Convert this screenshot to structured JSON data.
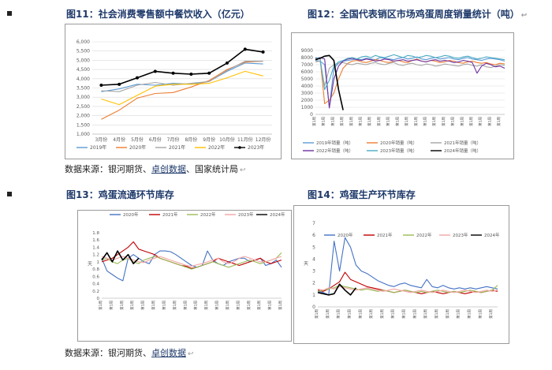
{
  "sections": [
    {
      "left": {
        "title": "图11：社会消费零售额中餐饮收入（亿元）"
      },
      "right": {
        "title": "图12：全国代表销区市场鸡蛋周度销量统计（吨）",
        "return_mark": "↩"
      },
      "source": {
        "label": "数据来源：",
        "items": [
          "银河期货",
          "卓创数据",
          "国家统计局"
        ],
        "separator": "、",
        "return_mark": "↩"
      }
    },
    {
      "left": {
        "title": "图13：鸡蛋流通环节库存"
      },
      "right": {
        "title": "图14：鸡蛋生产环节库存"
      },
      "source": {
        "label": "数据来源：",
        "items": [
          "银河期货",
          "卓创数据"
        ],
        "separator": "、",
        "return_mark": "↩"
      }
    }
  ],
  "chart_data": [
    {
      "type": "line",
      "title": "社会消费零售额中餐饮收入（亿元）",
      "categories": [
        "3月份",
        "4月份",
        "5月份",
        "6月份",
        "7月份",
        "8月份",
        "9月份",
        "10月份",
        "11月份",
        "12月份"
      ],
      "ylim": [
        1000,
        6000
      ],
      "yticks": [
        "1,000",
        "1,500",
        "2,000",
        "2,500",
        "3,000",
        "3,500",
        "4,000",
        "4,500",
        "5,000",
        "5,500",
        "6,000"
      ],
      "series": [
        {
          "name": "2019年",
          "color": "#5b9bd5",
          "values": [
            3300,
            3450,
            3700,
            3650,
            3750,
            3700,
            3850,
            4400,
            4850,
            4800
          ]
        },
        {
          "name": "2020年",
          "color": "#ed7d31",
          "values": [
            1800,
            2300,
            2950,
            3200,
            3250,
            3550,
            3900,
            4500,
            4900,
            4950
          ]
        },
        {
          "name": "2021年",
          "color": "#a5a5a5",
          "values": [
            3350,
            3300,
            3650,
            3800,
            3650,
            3750,
            3850,
            4450,
            4950,
            4950
          ]
        },
        {
          "name": "2022年",
          "color": "#ffc000",
          "values": [
            2900,
            2600,
            3100,
            3600,
            3700,
            3700,
            3750,
            4050,
            4400,
            4150
          ]
        },
        {
          "name": "2023年",
          "color": "#000000",
          "values": [
            3650,
            3700,
            4050,
            4400,
            4300,
            4250,
            4300,
            4850,
            5600,
            5450
          ]
        }
      ]
    },
    {
      "type": "line",
      "title": "全国代表销区市场鸡蛋周度销量统计（吨）",
      "ylim": [
        0,
        9000
      ],
      "yticks": [
        "0",
        "1000",
        "2000",
        "3000",
        "4000",
        "5000",
        "6000",
        "7000",
        "8000",
        "9000"
      ],
      "x_label_text": "第1周",
      "series": [
        {
          "name": "2019年销量（吨）",
          "color": "#5b9bd5",
          "values": [
            7600,
            7500,
            7000,
            1000,
            6500,
            7200,
            7500,
            7600,
            7700,
            7800,
            7700,
            7900,
            7800,
            7700,
            8000,
            7900,
            7800,
            7700,
            7900,
            8000,
            7800,
            7900,
            8100,
            7800,
            7700,
            7900,
            8000,
            7800,
            7900,
            8000,
            7800,
            7700,
            7900,
            8000,
            7800,
            7700,
            7600,
            7800,
            7900,
            7800,
            7700,
            7500
          ]
        },
        {
          "name": "2020年销量（吨）",
          "color": "#ed7d31",
          "values": [
            7700,
            7900,
            1500,
            2000,
            3000,
            5000,
            6500,
            7200,
            7500,
            7600,
            7400,
            7300,
            7500,
            7700,
            7600,
            7400,
            7300,
            7500,
            7600,
            7400,
            7300,
            7600,
            7800,
            7500,
            7400,
            7600,
            7500,
            7300,
            7400,
            7600,
            7500,
            7300,
            7200,
            7400,
            7500,
            7300,
            7200,
            7300,
            7100,
            7000,
            7200,
            7100
          ]
        },
        {
          "name": "2021年销量（吨）",
          "color": "#a5a5a5",
          "values": [
            7400,
            7500,
            4000,
            6500,
            7000,
            7200,
            7300,
            7100,
            7000,
            7200,
            7100,
            7000,
            7200,
            7300,
            7100,
            7000,
            7200,
            7300,
            7000,
            6900,
            7100,
            7200,
            7000,
            6900,
            7100,
            7000,
            6800,
            6900,
            7100,
            7000,
            6900,
            6800,
            7000,
            7100,
            6900,
            6800,
            7000,
            6700,
            6600,
            6800,
            7000,
            6900
          ]
        },
        {
          "name": "2022年销量（吨）",
          "color": "#7030a0",
          "values": [
            7900,
            8000,
            7800,
            900,
            5000,
            6800,
            7500,
            7800,
            7900,
            7700,
            7600,
            7800,
            7700,
            7500,
            7600,
            7800,
            7700,
            7500,
            7600,
            7700,
            7500,
            7600,
            7700,
            7500,
            7400,
            7600,
            7700,
            7500,
            7600,
            7500,
            7300,
            7400,
            7600,
            7500,
            7300,
            5800,
            6800,
            7200,
            7000,
            6700,
            6800,
            6500
          ]
        },
        {
          "name": "2023年销量（吨）",
          "color": "#4bacc6",
          "values": [
            8000,
            7900,
            3500,
            4800,
            6800,
            7400,
            7600,
            7900,
            8000,
            7800,
            8100,
            8200,
            8000,
            8300,
            8100,
            8000,
            8200,
            8400,
            8200,
            8000,
            8300,
            8200,
            8000,
            8100,
            8300,
            8200,
            8000,
            8100,
            8300,
            8200,
            8000,
            7900,
            8100,
            8200,
            8000,
            7800,
            7900,
            8100,
            8000,
            7900,
            7800,
            7700
          ]
        },
        {
          "name": "2024年销量（吨）",
          "color": "#000000",
          "values": [
            7700,
            7900,
            8200,
            8300,
            7600,
            3500,
            600,
            null,
            null,
            null,
            null,
            null,
            null,
            null,
            null,
            null,
            null,
            null,
            null,
            null,
            null,
            null,
            null,
            null,
            null,
            null,
            null,
            null,
            null,
            null,
            null,
            null,
            null,
            null,
            null,
            null,
            null,
            null,
            null,
            null,
            null,
            null
          ]
        }
      ]
    },
    {
      "type": "line",
      "title": "鸡蛋流通环节库存",
      "ylabel": "天",
      "ylim": [
        0,
        1.8
      ],
      "yticks": [
        "0",
        "0.2",
        "0.4",
        "0.6",
        "0.8",
        "1",
        "1.2",
        "1.4",
        "1.6",
        "1.8"
      ],
      "x_label_text": "第1周",
      "series": [
        {
          "name": "2020年",
          "color": "#4472c4",
          "values": [
            1.1,
            0.75,
            0.65,
            0.55,
            0.48,
            1.1,
            1.2,
            1.1,
            1.0,
            0.95,
            1.2,
            1.3,
            1.3,
            1.28,
            1.2,
            1.1,
            1.0,
            0.9,
            0.85,
            0.9,
            1.3,
            1.05,
            0.95,
            0.9,
            1.0,
            1.05,
            1.1,
            1.1,
            1.0,
            1.05,
            1.1,
            0.9,
            0.95,
            1.05,
            0.85
          ]
        },
        {
          "name": "2021年",
          "color": "#c00000",
          "values": [
            1.0,
            1.05,
            1.1,
            1.2,
            1.3,
            1.4,
            1.55,
            1.35,
            1.3,
            1.25,
            1.2,
            1.1,
            1.05,
            1.0,
            0.95,
            0.9,
            0.88,
            0.82,
            0.85,
            0.9,
            0.95,
            1.0,
            1.1,
            1.05,
            1.0,
            0.95,
            0.9,
            0.95,
            1.0,
            1.05,
            1.1,
            1.0,
            0.95,
            1.0,
            1.05
          ]
        },
        {
          "name": "2022年",
          "color": "#9bbb59",
          "values": [
            1.05,
            1.1,
            1.0,
            0.95,
            1.05,
            1.1,
            1.0,
            0.95,
            1.05,
            1.1,
            1.15,
            1.1,
            1.05,
            1.0,
            0.95,
            0.9,
            0.85,
            0.8,
            0.85,
            0.9,
            0.95,
            1.0,
            0.95,
            0.9,
            0.85,
            0.9,
            0.95,
            1.0,
            1.05,
            1.0,
            0.95,
            1.0,
            1.05,
            1.1,
            1.25
          ]
        },
        {
          "name": "2023年",
          "color": "#f4a6a6",
          "values": [
            1.15,
            1.1,
            1.05,
            1.1,
            1.15,
            1.1,
            1.05,
            1.0,
            0.98,
            1.05,
            1.1,
            1.15,
            1.1,
            1.05,
            1.0,
            0.95,
            0.9,
            0.88,
            0.92,
            0.95,
            1.0,
            1.05,
            1.1,
            1.0,
            0.95,
            1.0,
            1.1,
            1.15,
            1.1,
            1.05,
            1.0,
            1.0,
            1.05,
            1.1,
            1.15
          ]
        },
        {
          "name": "2024年",
          "color": "#000000",
          "values": [
            1.05,
            1.25,
            1.0,
            1.3,
            1.05,
            1.2,
            0.95,
            1.1,
            null,
            null,
            null,
            null,
            null,
            null,
            null,
            null,
            null,
            null,
            null,
            null,
            null,
            null,
            null,
            null,
            null,
            null,
            null,
            null,
            null,
            null,
            null,
            null,
            null,
            null,
            null
          ]
        }
      ]
    },
    {
      "type": "line",
      "title": "鸡蛋生产环节库存",
      "ylabel": "天",
      "ylim": [
        0,
        7
      ],
      "yticks": [
        "0",
        "1",
        "2",
        "3",
        "4",
        "5",
        "6",
        "7"
      ],
      "x_label_text": "第1周",
      "series": [
        {
          "name": "2020年",
          "color": "#4472c4",
          "values": [
            1.3,
            1.2,
            1.0,
            5.5,
            3.0,
            5.8,
            5.0,
            3.5,
            3.0,
            2.8,
            2.5,
            2.2,
            2.0,
            1.8,
            1.7,
            1.9,
            2.0,
            1.8,
            1.7,
            1.6,
            2.3,
            1.7,
            1.6,
            1.8,
            1.6,
            1.5,
            1.6,
            1.5,
            1.6,
            1.5,
            1.6,
            1.7,
            1.6,
            1.5
          ]
        },
        {
          "name": "2021年",
          "color": "#c00000",
          "values": [
            1.4,
            1.3,
            1.5,
            1.8,
            2.1,
            2.9,
            2.3,
            2.1,
            1.9,
            1.7,
            1.6,
            1.5,
            1.4,
            1.3,
            1.2,
            1.3,
            1.4,
            1.3,
            1.2,
            1.1,
            1.2,
            1.3,
            1.2,
            1.1,
            1.2,
            1.3,
            1.2,
            1.1,
            1.2,
            1.3,
            1.2,
            1.3,
            1.4,
            1.3
          ]
        },
        {
          "name": "2022年",
          "color": "#9bbb59",
          "values": [
            1.3,
            1.4,
            1.5,
            1.6,
            1.8,
            1.7,
            1.6,
            1.5,
            1.4,
            1.5,
            1.4,
            1.3,
            1.4,
            1.3,
            1.2,
            1.3,
            1.4,
            1.3,
            1.2,
            1.3,
            1.2,
            1.3,
            1.4,
            1.3,
            1.2,
            1.3,
            1.2,
            1.3,
            1.4,
            1.3,
            1.2,
            1.3,
            1.4,
            1.8
          ]
        },
        {
          "name": "2023年",
          "color": "#f4a6a6",
          "values": [
            1.5,
            1.4,
            1.6,
            1.5,
            1.7,
            1.6,
            1.5,
            1.4,
            1.5,
            1.6,
            1.5,
            1.4,
            1.3,
            1.4,
            1.5,
            1.4,
            1.3,
            1.2,
            1.3,
            1.4,
            1.3,
            1.2,
            1.3,
            1.4,
            1.3,
            1.2,
            1.3,
            1.4,
            1.3,
            1.2,
            1.3,
            1.4,
            1.3,
            1.4
          ]
        },
        {
          "name": "2024年",
          "color": "#000000",
          "values": [
            1.2,
            1.1,
            1.0,
            1.1,
            1.9,
            1.4,
            1.0,
            1.6,
            null,
            null,
            null,
            null,
            null,
            null,
            null,
            null,
            null,
            null,
            null,
            null,
            null,
            null,
            null,
            null,
            null,
            null,
            null,
            null,
            null,
            null,
            null,
            null,
            null,
            null
          ]
        }
      ]
    }
  ]
}
